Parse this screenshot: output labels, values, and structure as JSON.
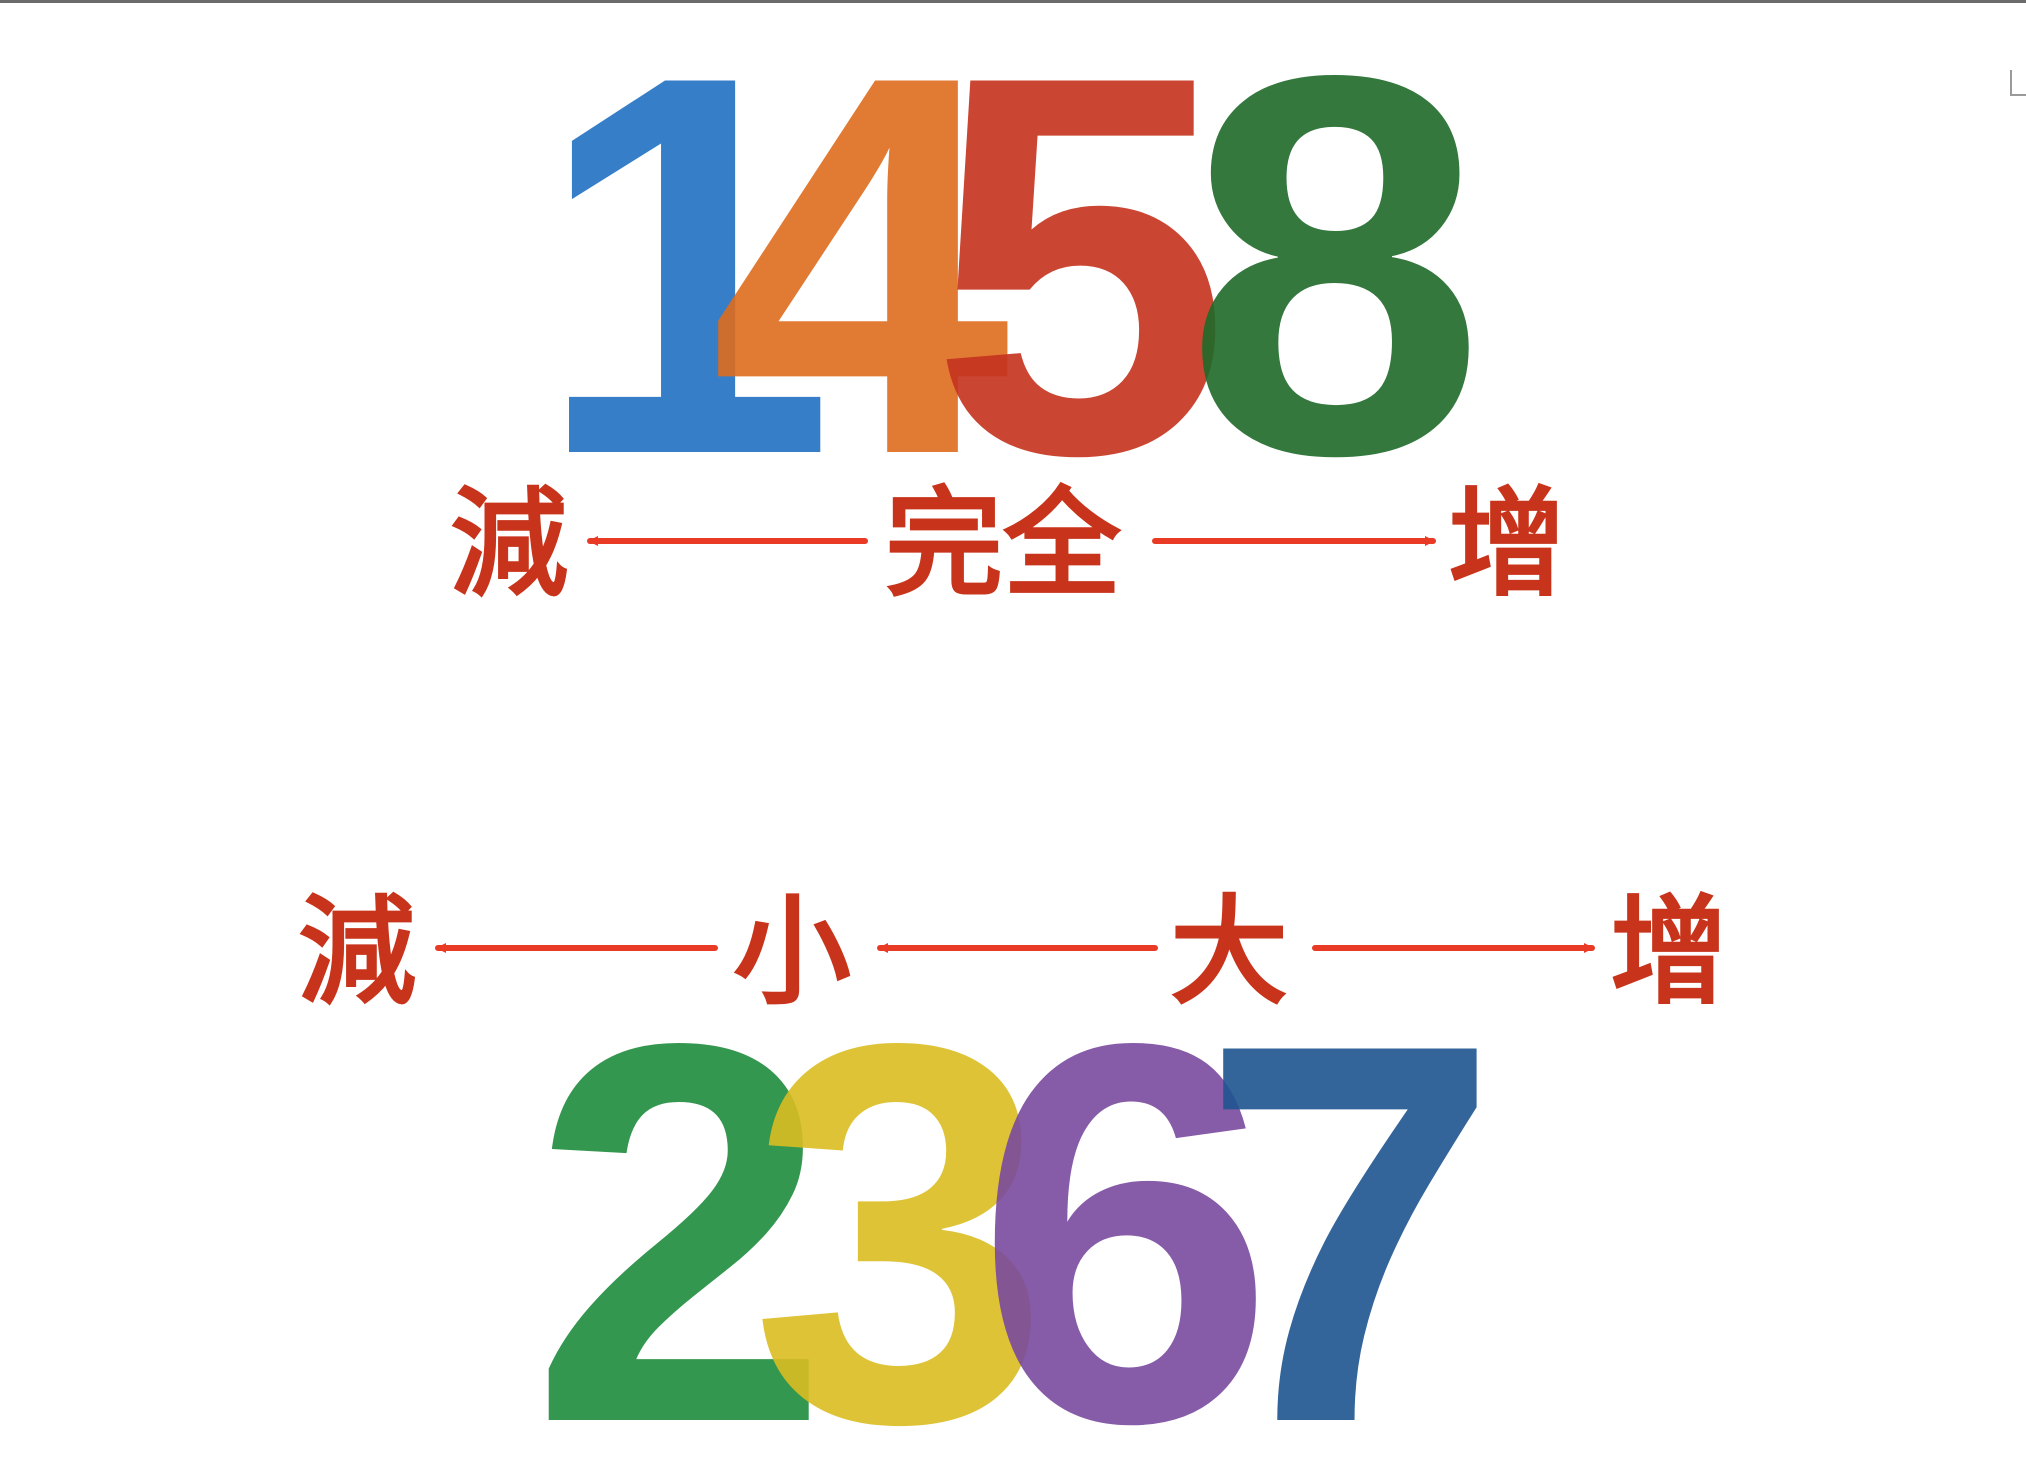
{
  "colors": {
    "label": "#c8341b",
    "arrow": "#e83a24",
    "background": "#ffffff"
  },
  "top": {
    "digits": [
      {
        "text": "1",
        "color": "#2271c4"
      },
      {
        "text": "4",
        "color": "#de6c1e"
      },
      {
        "text": "5",
        "color": "#c5321e"
      },
      {
        "text": "8",
        "color": "#1f6a2a"
      }
    ],
    "labels": {
      "left": "減",
      "center": "完全",
      "right": "增"
    }
  },
  "bottom": {
    "digits": [
      {
        "text": "2",
        "color": "#1f8c3d"
      },
      {
        "text": "3",
        "color": "#dbbd22"
      },
      {
        "text": "6",
        "color": "#7a4a9e"
      },
      {
        "text": "7",
        "color": "#1f5590"
      }
    ],
    "labels": {
      "left": "減",
      "small": "小",
      "big": "大",
      "right": "增"
    }
  }
}
